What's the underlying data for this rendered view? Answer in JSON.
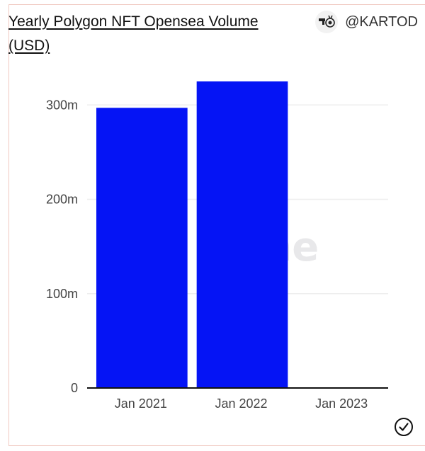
{
  "header": {
    "title": "Yearly Polygon NFT Opensea Volume (USD)",
    "author_handle": "@KARTOD"
  },
  "watermark": {
    "text": "Dune"
  },
  "colors": {
    "bar": "#0514f5",
    "grid": "#eeeeee",
    "axis": "#111111"
  },
  "chart_data": {
    "type": "bar",
    "title": "Yearly Polygon NFT Opensea Volume (USD)",
    "categories": [
      "Jan 2021",
      "Jan 2022",
      "Jan 2023"
    ],
    "values": [
      297000000,
      325000000,
      0
    ],
    "ylim": [
      0,
      325000000
    ],
    "yticks": [
      0,
      100000000,
      200000000,
      300000000
    ],
    "ytick_labels": [
      "0",
      "100m",
      "200m",
      "300m"
    ],
    "xlabel": "",
    "ylabel": "",
    "grid": true,
    "legend": "none"
  },
  "status_icon": "check-circle-icon"
}
